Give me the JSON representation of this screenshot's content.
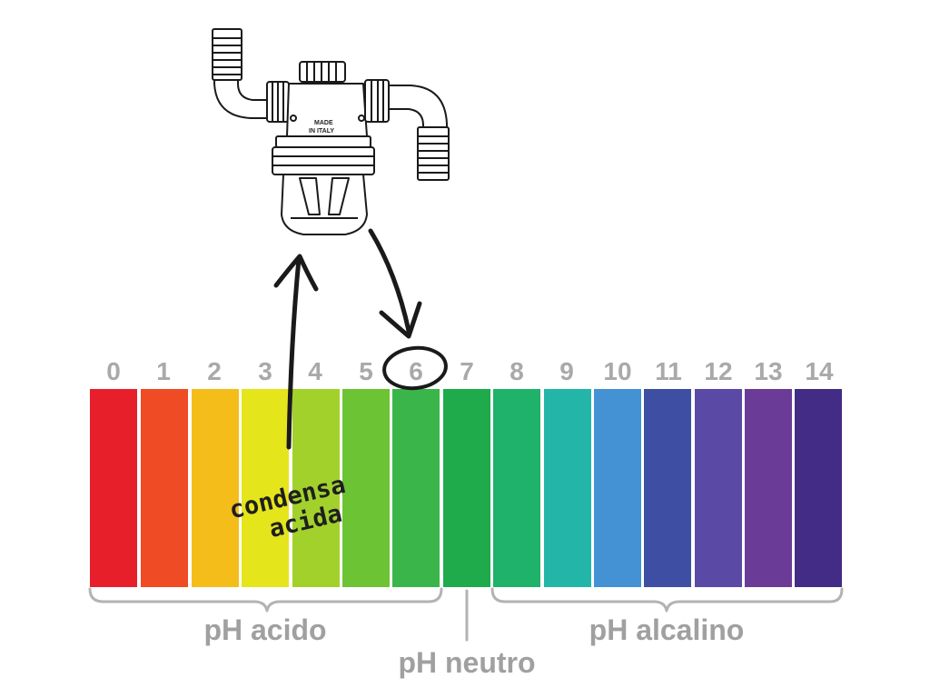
{
  "scale": {
    "ph_values": [
      "0",
      "1",
      "2",
      "3",
      "4",
      "5",
      "6",
      "7",
      "8",
      "9",
      "10",
      "11",
      "12",
      "13",
      "14"
    ],
    "colors": [
      "#e71f2a",
      "#ef4b25",
      "#f5bd1a",
      "#e5e51c",
      "#a3d12c",
      "#6cc333",
      "#3ab54a",
      "#1faa4c",
      "#1fb26a",
      "#23b6a8",
      "#4491d3",
      "#3d4ea3",
      "#5a4aa6",
      "#6b3b98",
      "#432c85"
    ],
    "highlighted_value": "6"
  },
  "labels": {
    "acid": "pH acido",
    "neutral": "pH neutro",
    "alkaline": "pH alcalino"
  },
  "annotation": {
    "line1": "condensa",
    "line2": "acida"
  },
  "device": {
    "marking_line1": "MADE",
    "marking_line2": "IN ITALY"
  }
}
